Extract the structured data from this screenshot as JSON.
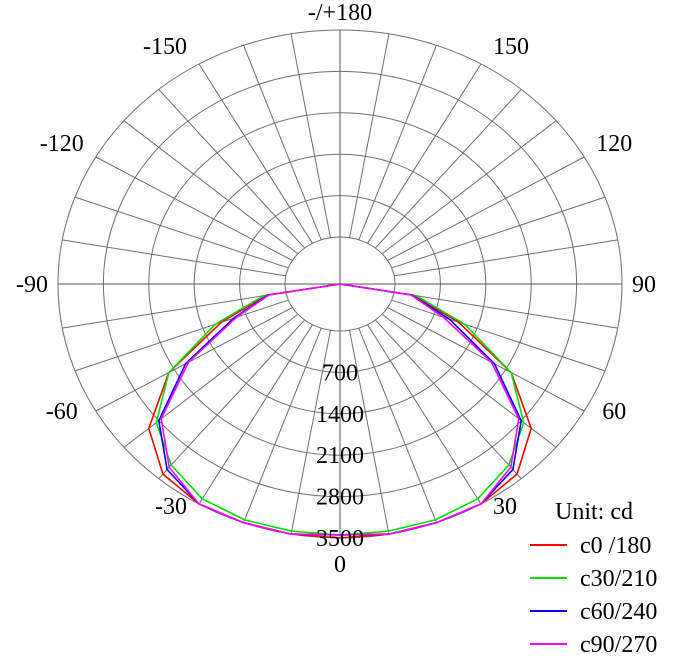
{
  "chart_data": {
    "type": "polar",
    "unit_label": "Unit: cd",
    "angle_labels": [
      {
        "angle": 0,
        "text": "0"
      },
      {
        "angle": 30,
        "text": "30"
      },
      {
        "angle": 60,
        "text": "60"
      },
      {
        "angle": 90,
        "text": "90"
      },
      {
        "angle": 120,
        "text": "120"
      },
      {
        "angle": 150,
        "text": "150"
      },
      {
        "angle": 180,
        "text": "-/+180"
      },
      {
        "angle": -150,
        "text": "-150"
      },
      {
        "angle": -120,
        "text": "-120"
      },
      {
        "angle": -90,
        "text": "-90"
      },
      {
        "angle": -60,
        "text": "-60"
      },
      {
        "angle": -30,
        "text": "-30"
      }
    ],
    "rings": [
      700,
      1400,
      2100,
      2800,
      3500
    ],
    "ring_labels": [
      "700",
      "1400",
      "2100",
      "2800",
      "3500"
    ],
    "r_max": 3500,
    "spoke_step_deg": 10,
    "angles": [
      -90,
      -80,
      -70,
      -60,
      -50,
      -40,
      -30,
      -20,
      -10,
      0,
      10,
      20,
      30,
      40,
      50,
      60,
      70,
      80,
      90
    ],
    "series": [
      {
        "name": "c0 /180",
        "color": "#ff0000",
        "values": [
          0,
          300,
          1100,
          2200,
          3000,
          3400,
          3550,
          3600,
          3600,
          3550,
          3600,
          3600,
          3550,
          3400,
          3000,
          2200,
          1100,
          300,
          0
        ]
      },
      {
        "name": "c30/210",
        "color": "#00e000",
        "values": [
          0,
          350,
          1200,
          2200,
          2850,
          3200,
          3400,
          3450,
          3450,
          3450,
          3450,
          3450,
          3400,
          3200,
          2850,
          2200,
          1200,
          350,
          0
        ]
      },
      {
        "name": "c60/240",
        "color": "#0000ff",
        "values": [
          0,
          280,
          900,
          1900,
          2800,
          3300,
          3500,
          3550,
          3500,
          3450,
          3500,
          3550,
          3500,
          3300,
          2800,
          1900,
          950,
          280,
          0
        ]
      },
      {
        "name": "c90/270",
        "color": "#ff00ff",
        "values": [
          0,
          260,
          850,
          1850,
          2750,
          3250,
          3500,
          3550,
          3500,
          3450,
          3500,
          3550,
          3500,
          3250,
          2750,
          1850,
          850,
          260,
          0
        ]
      }
    ]
  }
}
